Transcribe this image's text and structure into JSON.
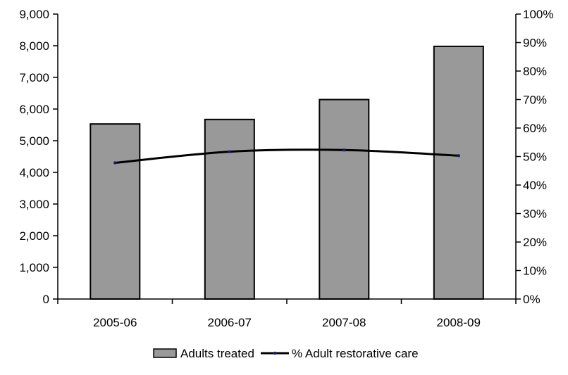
{
  "chart_data": {
    "type": "bar",
    "categories": [
      "2005-06",
      "2006-07",
      "2007-08",
      "2008-09"
    ],
    "series": [
      {
        "name": "Adults treated",
        "type": "bar",
        "axis": "left",
        "values": [
          5530,
          5670,
          6300,
          7980
        ],
        "color": "#999999"
      },
      {
        "name": "% Adult restorative care",
        "type": "line",
        "axis": "right",
        "values": [
          47.8,
          51.7,
          52.3,
          50.3
        ],
        "color": "#000000"
      }
    ],
    "left_axis": {
      "ylim": [
        0,
        9000
      ],
      "ticks": [
        0,
        1000,
        2000,
        3000,
        4000,
        5000,
        6000,
        7000,
        8000,
        9000
      ],
      "tick_labels": [
        "0",
        "1,000",
        "2,000",
        "3,000",
        "4,000",
        "5,000",
        "6,000",
        "7,000",
        "8,000",
        "9,000"
      ]
    },
    "right_axis": {
      "ylim": [
        0,
        100
      ],
      "ticks": [
        0,
        10,
        20,
        30,
        40,
        50,
        60,
        70,
        80,
        90,
        100
      ],
      "tick_labels": [
        "0%",
        "10%",
        "20%",
        "30%",
        "40%",
        "50%",
        "60%",
        "70%",
        "80%",
        "90%",
        "100%"
      ]
    },
    "grid": false,
    "legend": "bottom",
    "title": "",
    "xlabel": "",
    "ylabel": ""
  }
}
